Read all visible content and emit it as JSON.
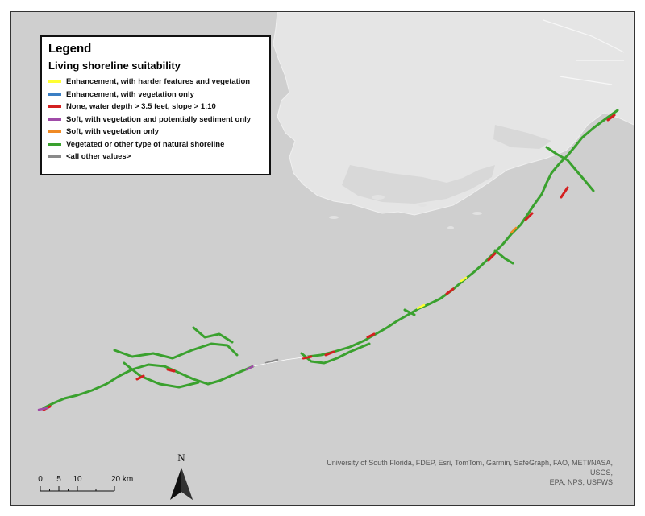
{
  "legend": {
    "title": "Legend",
    "subtitle": "Living shoreline suitability",
    "items": [
      {
        "label": "Enhancement, with harder features and vegetation",
        "color": "#ffff33"
      },
      {
        "label": "Enhancement, with vegetation only",
        "color": "#3b7fc4"
      },
      {
        "label": "None, water depth > 3.5 feet, slope > 1:10",
        "color": "#d42020"
      },
      {
        "label": "Soft, with vegetation and potentially sediment only",
        "color": "#a04ba8"
      },
      {
        "label": "Soft, with vegetation only",
        "color": "#f08a24"
      },
      {
        "label": "Vegetated or other type of natural shoreline",
        "color": "#3aa12e"
      },
      {
        "label": "<all other values>",
        "color": "#8a8a8a"
      }
    ]
  },
  "scalebar": {
    "ticks": [
      "0",
      "5",
      "10",
      "20 km"
    ]
  },
  "north_arrow": {
    "label": "N"
  },
  "attribution": {
    "line1": "University of South Florida, FDEP, Esri, TomTom, Garmin, SafeGraph, FAO, METI/NASA, USGS,",
    "line2": "EPA, NPS, USFWS"
  },
  "colors": {
    "water": "#cfcfcf",
    "land": "#e4e4e4",
    "shoreline_natural": "#3aa12e",
    "shoreline_none": "#d42020"
  }
}
